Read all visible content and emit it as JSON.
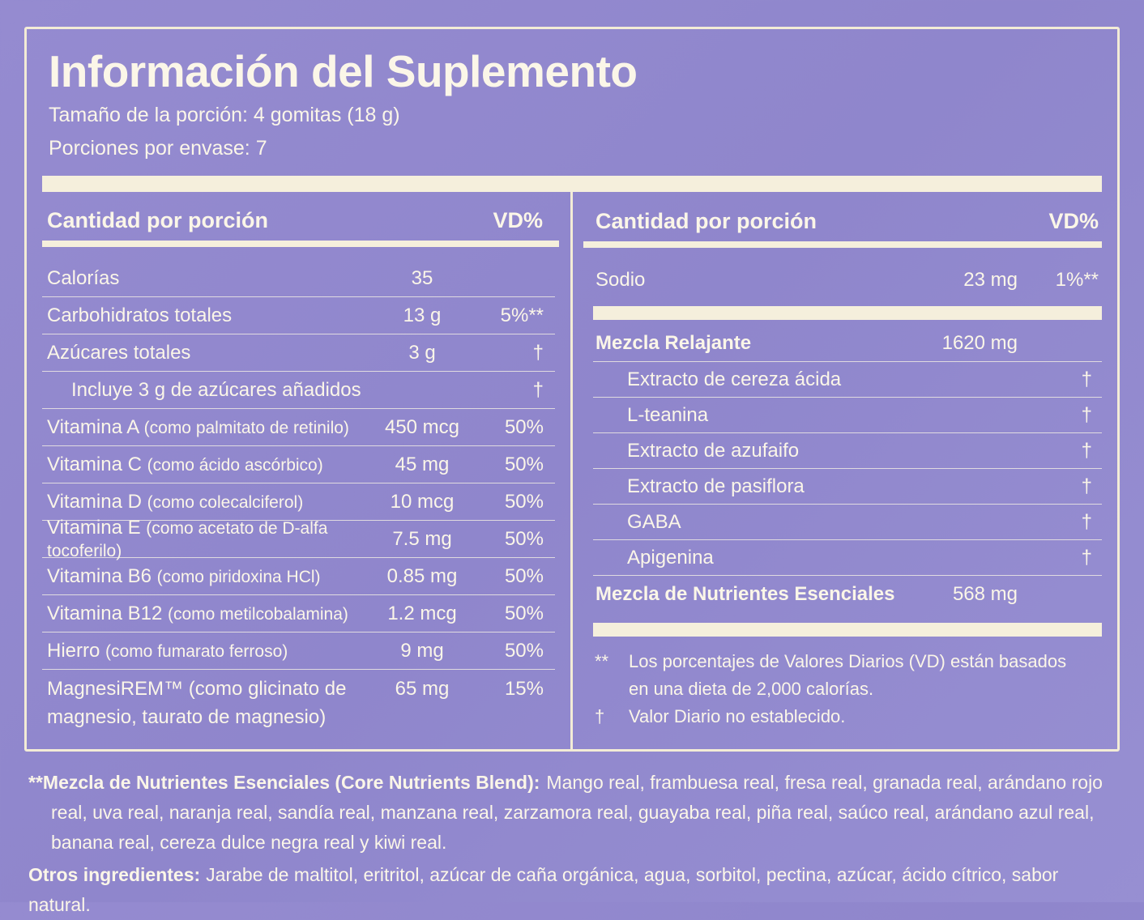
{
  "title": "Información del Suplemento",
  "serving_size": "Tamaño de la porción: 4 gomitas (18 g)",
  "servings_per_container": "Porciones por envase: 7",
  "left_table": {
    "headers": {
      "amount": "Cantidad por porción",
      "dv": "VD%"
    },
    "rows": [
      {
        "name": "Calorías",
        "amount": "35"
      },
      {
        "name": "Carbohidratos totales",
        "amount": "13 g",
        "dv": "5%**"
      },
      {
        "name": "Azúcares totales",
        "amount": "3 g",
        "dv": "†",
        "sub": {
          "name": "Incluye 3 g de azúcares añadidos",
          "dv": "†"
        }
      },
      {
        "name": "Vitamina A",
        "detail": "(como palmitato de retinilo)",
        "amount": "450 mcg",
        "dv": "50%"
      },
      {
        "name": "Vitamina C",
        "detail": "(como ácido ascórbico)",
        "amount": "45 mg",
        "dv": "50%"
      },
      {
        "name": "Vitamina D",
        "detail": "(como colecalciferol)",
        "amount": "10 mcg",
        "dv": "50%"
      },
      {
        "name": "Vitamina E",
        "detail": "(como acetato de D-alfa tocoferilo)",
        "amount": "7.5 mg",
        "dv": "50%"
      },
      {
        "name": "Vitamina B6",
        "detail": "(como piridoxina HCl)",
        "amount": "0.85 mg",
        "dv": "50%"
      },
      {
        "name": "Vitamina B12",
        "detail": "(como metilcobalamina)",
        "amount": "1.2 mcg",
        "dv": "50%"
      },
      {
        "name": "Hierro",
        "detail": "(como fumarato ferroso)",
        "amount": "9 mg",
        "dv": "50%"
      },
      {
        "name": "MagnesiREM™ (como glicinato de magnesio, taurato de magnesio)",
        "amount": "65 mg",
        "dv": "15%"
      }
    ]
  },
  "right_table": {
    "headers": {
      "amount": "Cantidad por porción",
      "dv": "VD%"
    },
    "rows": [
      {
        "name": "Sodio",
        "amount": "23 mg",
        "dv": "1%**"
      }
    ],
    "blends": [
      {
        "name": "Mezcla Relajante",
        "amount": "1620 mg",
        "items": [
          {
            "name": "Extracto de cereza ácida",
            "dv": "†"
          },
          {
            "name": "L-teanina",
            "dv": "†"
          },
          {
            "name": "Extracto de azufaifo",
            "dv": "†"
          },
          {
            "name": "Extracto de pasiflora",
            "dv": "†"
          },
          {
            "name": "GABA",
            "dv": "†"
          },
          {
            "name": "Apigenina",
            "dv": "†"
          }
        ]
      },
      {
        "name": "Mezcla de Nutrientes Esenciales",
        "amount": "568 mg"
      }
    ],
    "footnotes": [
      {
        "mark": "**",
        "text": "Los porcentajes de Valores Diarios (VD) están basados en una dieta de 2,000 calorías."
      },
      {
        "mark": "†",
        "text": "Valor Diario no establecido."
      }
    ]
  },
  "blend_note": {
    "mark": "**",
    "label": "Mezcla de Nutrientes Esenciales (Core Nutrients Blend):",
    "text": "Mango real, frambuesa real, fresa real, granada real, arándano rojo real, uva real, naranja real, sandía real, manzana real, zarzamora real, guayaba real, piña real, saúco real, arándano azul real, banana real, cereza dulce negra real y kiwi real."
  },
  "other_ingredients": {
    "label": "Otros ingredientes:",
    "text": "Jarabe de maltitol, eritritol, azúcar de caña orgánica, agua, sorbitol, pectina, azúcar, ácido cítrico, sabor natural."
  }
}
